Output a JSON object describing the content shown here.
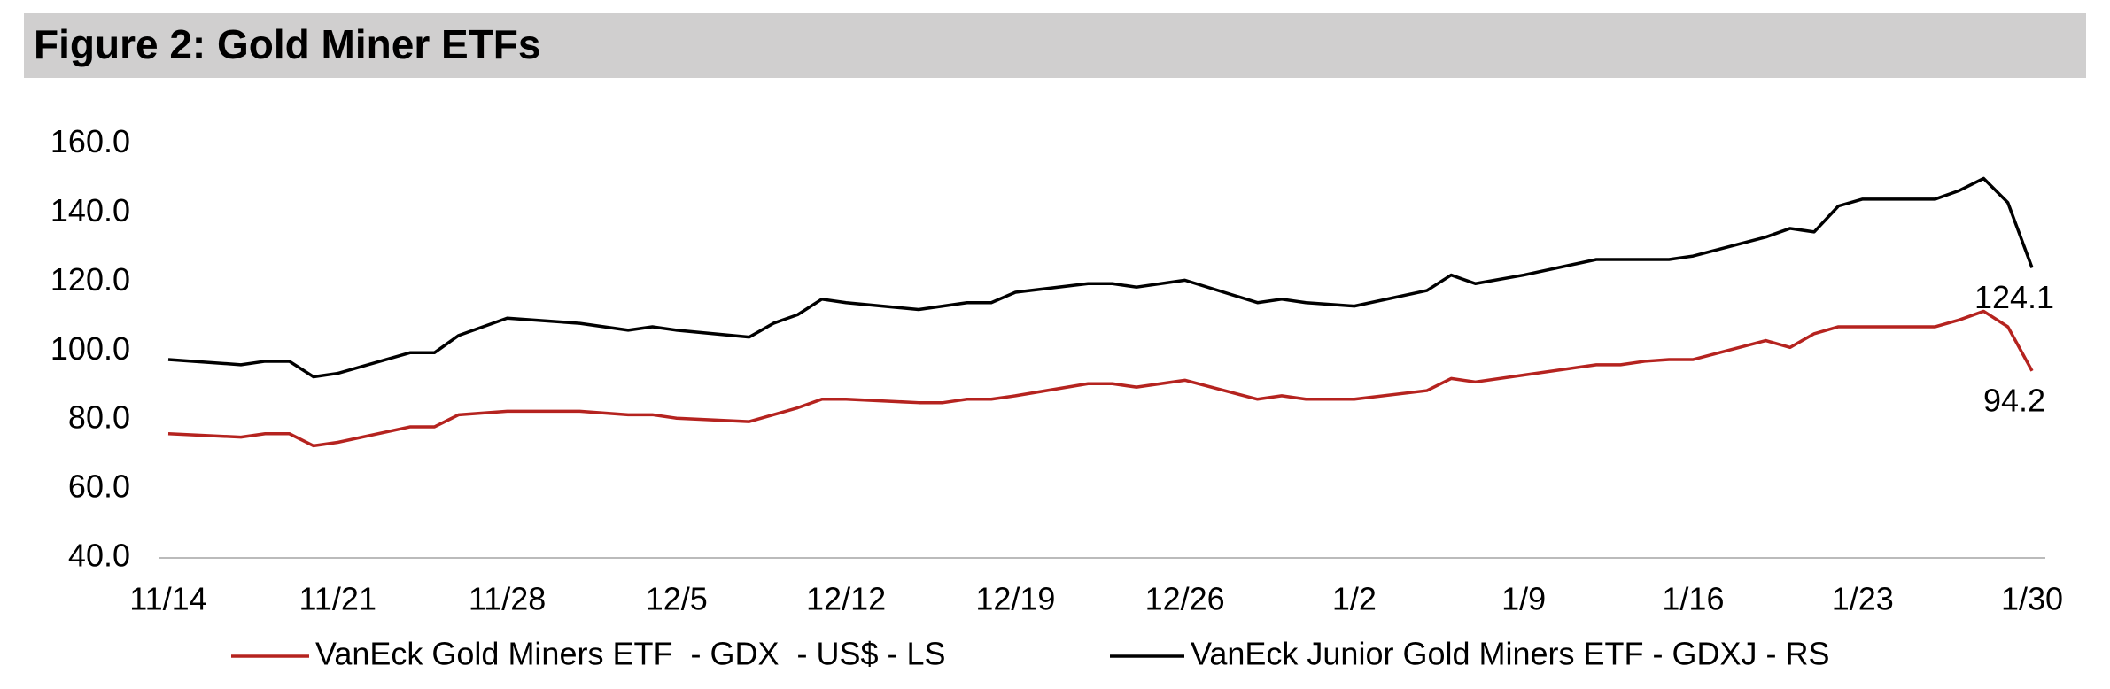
{
  "chart_data": {
    "type": "line",
    "title": "Figure 2: Gold Miner ETFs",
    "x": [
      0,
      3,
      4,
      5,
      6,
      7,
      10,
      11,
      12,
      14,
      17,
      19,
      20,
      21,
      24,
      25,
      26,
      27,
      28,
      31,
      32,
      33,
      34,
      35,
      38,
      39,
      40,
      42,
      45,
      46,
      47,
      49,
      52,
      53,
      54,
      56,
      59,
      60,
      61,
      62,
      63,
      66,
      67,
      68,
      69,
      70,
      73,
      74,
      75,
      76,
      77
    ],
    "xlim": [
      0,
      77
    ],
    "xticks": [
      {
        "value": 0,
        "label": "11/14"
      },
      {
        "value": 7,
        "label": "11/21"
      },
      {
        "value": 14,
        "label": "11/28"
      },
      {
        "value": 21,
        "label": "12/5"
      },
      {
        "value": 28,
        "label": "12/12"
      },
      {
        "value": 35,
        "label": "12/19"
      },
      {
        "value": 42,
        "label": "12/26"
      },
      {
        "value": 49,
        "label": "1/2"
      },
      {
        "value": 56,
        "label": "1/9"
      },
      {
        "value": 63,
        "label": "1/16"
      },
      {
        "value": 70,
        "label": "1/23"
      },
      {
        "value": 77,
        "label": "1/30"
      }
    ],
    "ylim": [
      40,
      160
    ],
    "yticks": [
      {
        "value": 40,
        "label": "40.0"
      },
      {
        "value": 60,
        "label": "60.0"
      },
      {
        "value": 80,
        "label": "80.0"
      },
      {
        "value": 100,
        "label": "100.0"
      },
      {
        "value": 120,
        "label": "120.0"
      },
      {
        "value": 140,
        "label": "140.0"
      },
      {
        "value": 160,
        "label": "160.0"
      }
    ],
    "grid": false,
    "legend": "bottom",
    "series": [
      {
        "name": "VanEck Gold Miners ETF  - GDX  - US$ - LS",
        "color": "#b5231f",
        "values": [
          76,
          75,
          76,
          76,
          72.5,
          73.5,
          78,
          78,
          81.5,
          82.5,
          82.5,
          81.5,
          81.5,
          80.5,
          79.5,
          81.5,
          83.5,
          86,
          86,
          85,
          85,
          86,
          86,
          87,
          90.5,
          90.5,
          89.5,
          91.5,
          86,
          87,
          86,
          86,
          88.5,
          92,
          91,
          93,
          96,
          96,
          97,
          97.5,
          97.5,
          103,
          101,
          105,
          107,
          107,
          107,
          109,
          111.5,
          107,
          94.2
        ],
        "value_labels": [
          null,
          null,
          null,
          null,
          null,
          null,
          null,
          null,
          null,
          null,
          null,
          null,
          null,
          null,
          null,
          null,
          null,
          null,
          null,
          null,
          null,
          null,
          null,
          null,
          null,
          null,
          null,
          null,
          null,
          null,
          null,
          null,
          null,
          null,
          null,
          null,
          null,
          null,
          null,
          null,
          null,
          null,
          null,
          null,
          null,
          null,
          null,
          null,
          null,
          null,
          "94.2"
        ]
      },
      {
        "name": "VanEck Junior Gold Miners ETF - GDXJ - RS",
        "color": "#000000",
        "values": [
          97.5,
          96,
          97,
          97,
          92.5,
          93.5,
          99.5,
          99.5,
          104.5,
          109.5,
          108,
          106,
          107,
          106,
          104,
          108,
          110.5,
          115,
          114,
          112,
          113,
          114,
          114,
          117,
          119.5,
          119.5,
          118.5,
          120.5,
          114,
          115,
          114,
          113,
          117.5,
          122,
          119.5,
          122,
          126.5,
          126.5,
          126.5,
          126.5,
          127.5,
          133,
          135.5,
          134.5,
          142,
          144,
          144,
          146.5,
          150,
          143,
          124.1
        ],
        "value_labels": [
          null,
          null,
          null,
          null,
          null,
          null,
          null,
          null,
          null,
          null,
          null,
          null,
          null,
          null,
          null,
          null,
          null,
          null,
          null,
          null,
          null,
          null,
          null,
          null,
          null,
          null,
          null,
          null,
          null,
          null,
          null,
          null,
          null,
          null,
          null,
          null,
          null,
          null,
          null,
          null,
          null,
          null,
          null,
          null,
          null,
          null,
          null,
          null,
          null,
          null,
          "124.1"
        ]
      }
    ]
  }
}
